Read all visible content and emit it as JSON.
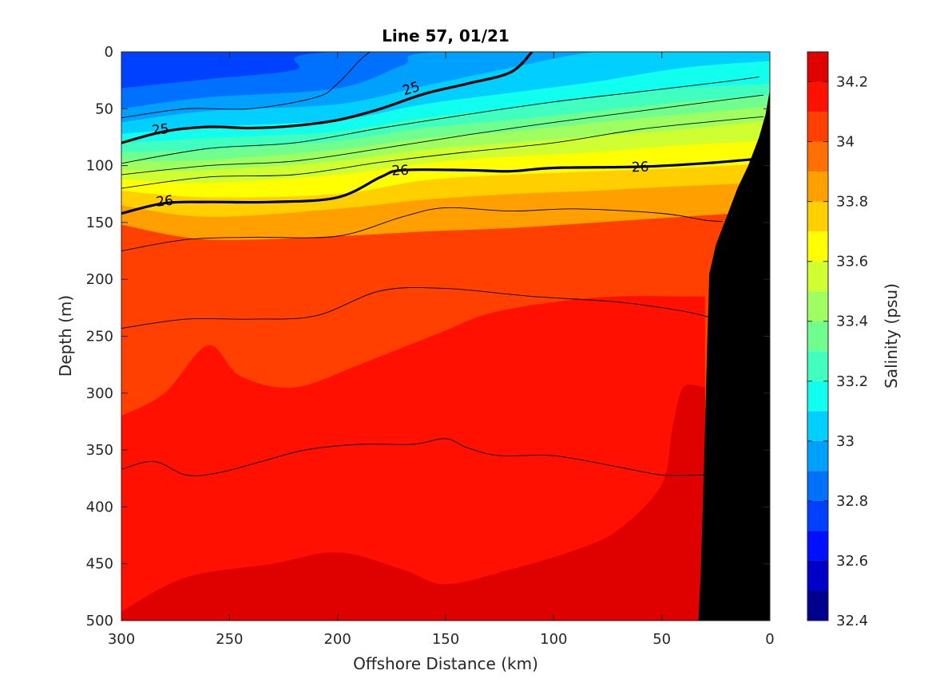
{
  "chart_data": {
    "type": "contourf",
    "title": "Line 57, 01/21",
    "xlabel": "Offshore Distance (km)",
    "ylabel": "Depth (m)",
    "xlim": [
      300,
      0
    ],
    "ylim": [
      0,
      500
    ],
    "x_reversed": true,
    "y_reversed": true,
    "x_ticks": [
      300,
      250,
      200,
      150,
      100,
      50,
      0
    ],
    "y_ticks": [
      0,
      50,
      100,
      150,
      200,
      250,
      300,
      350,
      400,
      450,
      500
    ],
    "colorbar": {
      "label": "Salinity (psu)",
      "range": [
        32.4,
        34.3
      ],
      "levels": [
        32.4,
        32.5,
        32.6,
        32.7,
        32.8,
        32.9,
        33.0,
        33.1,
        33.2,
        33.3,
        33.4,
        33.5,
        33.6,
        33.7,
        33.8,
        33.9,
        34.0,
        34.1,
        34.2,
        34.3
      ],
      "colors": [
        "#00008f",
        "#0000c8",
        "#0010ff",
        "#0040ff",
        "#0070ff",
        "#00a0ff",
        "#00cfff",
        "#10ffef",
        "#40ffbf",
        "#70ff8f",
        "#9fff60",
        "#cfff30",
        "#ffff00",
        "#ffcf00",
        "#ff9f00",
        "#ff7000",
        "#ff4000",
        "#ff1000",
        "#df0000",
        "#af0000"
      ],
      "ticks": [
        32.4,
        32.6,
        32.8,
        33.0,
        33.2,
        33.4,
        33.6,
        33.8,
        34.0,
        34.2
      ],
      "tick_labels": [
        "32.4",
        "32.6",
        "32.8",
        "33",
        "33.2",
        "33.4",
        "33.6",
        "33.8",
        "34",
        "34.2"
      ]
    },
    "salinity_layers": [
      {
        "level": 34.0,
        "note": "base",
        "top": [
          [
            300,
            0
          ],
          [
            0,
            0
          ]
        ]
      },
      {
        "level": 33.9,
        "top": [
          [
            300,
            152
          ],
          [
            260,
            165
          ],
          [
            200,
            162
          ],
          [
            160,
            158
          ],
          [
            120,
            155
          ],
          [
            80,
            150
          ],
          [
            40,
            145
          ],
          [
            0,
            140
          ]
        ]
      },
      {
        "level": 33.8,
        "top": [
          [
            300,
            135
          ],
          [
            260,
            145
          ],
          [
            200,
            138
          ],
          [
            160,
            130
          ],
          [
            120,
            125
          ],
          [
            80,
            122
          ],
          [
            40,
            118
          ],
          [
            0,
            115
          ]
        ]
      },
      {
        "level": 33.7,
        "top": [
          [
            300,
            122
          ],
          [
            260,
            128
          ],
          [
            200,
            125
          ],
          [
            160,
            113
          ],
          [
            120,
            108
          ],
          [
            80,
            105
          ],
          [
            40,
            102
          ],
          [
            0,
            98
          ]
        ]
      },
      {
        "level": 33.6,
        "top": [
          [
            300,
            112
          ],
          [
            260,
            115
          ],
          [
            200,
            108
          ],
          [
            160,
            98
          ],
          [
            120,
            92
          ],
          [
            80,
            88
          ],
          [
            40,
            82
          ],
          [
            0,
            78
          ]
        ]
      },
      {
        "level": 33.5,
        "top": [
          [
            300,
            104
          ],
          [
            260,
            104
          ],
          [
            200,
            96
          ],
          [
            160,
            86
          ],
          [
            120,
            80
          ],
          [
            80,
            74
          ],
          [
            40,
            68
          ],
          [
            0,
            60
          ]
        ]
      },
      {
        "level": 33.4,
        "top": [
          [
            300,
            96
          ],
          [
            260,
            95
          ],
          [
            200,
            86
          ],
          [
            160,
            76
          ],
          [
            120,
            70
          ],
          [
            80,
            62
          ],
          [
            40,
            55
          ],
          [
            0,
            48
          ]
        ]
      },
      {
        "level": 33.3,
        "top": [
          [
            300,
            88
          ],
          [
            260,
            86
          ],
          [
            200,
            78
          ],
          [
            160,
            67
          ],
          [
            120,
            60
          ],
          [
            80,
            52
          ],
          [
            40,
            44
          ],
          [
            0,
            38
          ]
        ]
      },
      {
        "level": 33.2,
        "top": [
          [
            300,
            80
          ],
          [
            260,
            76
          ],
          [
            200,
            70
          ],
          [
            160,
            58
          ],
          [
            120,
            50
          ],
          [
            80,
            40
          ],
          [
            40,
            32
          ],
          [
            0,
            28
          ]
        ]
      },
      {
        "level": 33.1,
        "top": [
          [
            300,
            72
          ],
          [
            260,
            66
          ],
          [
            200,
            60
          ],
          [
            160,
            46
          ],
          [
            120,
            36
          ],
          [
            80,
            26
          ],
          [
            40,
            14
          ],
          [
            0,
            8
          ]
        ]
      },
      {
        "level": 33.0,
        "top": [
          [
            300,
            62
          ],
          [
            260,
            52
          ],
          [
            200,
            46
          ],
          [
            160,
            30
          ],
          [
            120,
            14
          ],
          [
            80,
            0
          ],
          [
            40,
            0
          ],
          [
            0,
            0
          ]
        ]
      },
      {
        "level": 32.9,
        "top": [
          [
            300,
            50
          ],
          [
            260,
            40
          ],
          [
            200,
            32
          ],
          [
            170,
            12
          ],
          [
            150,
            0
          ],
          [
            0,
            0
          ]
        ]
      },
      {
        "level": 32.8,
        "top": [
          [
            300,
            32
          ],
          [
            260,
            24
          ],
          [
            220,
            16
          ],
          [
            200,
            0
          ],
          [
            0,
            0
          ]
        ]
      }
    ],
    "deep_layers": [
      {
        "level": 34.1,
        "top": [
          [
            300,
            320
          ],
          [
            280,
            300
          ],
          [
            260,
            258
          ],
          [
            245,
            285
          ],
          [
            220,
            295
          ],
          [
            190,
            275
          ],
          [
            170,
            260
          ],
          [
            150,
            245
          ],
          [
            130,
            230
          ],
          [
            100,
            220
          ],
          [
            70,
            215
          ],
          [
            40,
            215
          ],
          [
            30,
            215
          ],
          [
            30,
            500
          ],
          [
            300,
            500
          ]
        ]
      },
      {
        "level": 34.2,
        "top": [
          [
            300,
            492
          ],
          [
            270,
            462
          ],
          [
            230,
            450
          ],
          [
            200,
            440
          ],
          [
            170,
            455
          ],
          [
            150,
            468
          ],
          [
            120,
            455
          ],
          [
            90,
            438
          ],
          [
            70,
            420
          ],
          [
            50,
            380
          ],
          [
            45,
            330
          ],
          [
            40,
            295
          ],
          [
            30,
            295
          ],
          [
            30,
            500
          ],
          [
            300,
            500
          ]
        ]
      }
    ],
    "density_contours": [
      {
        "sigma": 25.0,
        "bold": true,
        "label": "25",
        "points": [
          [
            300,
            80
          ],
          [
            280,
            70
          ],
          [
            260,
            66
          ],
          [
            240,
            67
          ],
          [
            220,
            65
          ],
          [
            200,
            60
          ],
          [
            180,
            50
          ],
          [
            160,
            37
          ],
          [
            140,
            28
          ],
          [
            120,
            18
          ],
          [
            110,
            0
          ]
        ]
      },
      {
        "sigma": 26.0,
        "bold": true,
        "label": "26",
        "points": [
          [
            300,
            142
          ],
          [
            280,
            133
          ],
          [
            260,
            132
          ],
          [
            230,
            132
          ],
          [
            200,
            128
          ],
          [
            180,
            110
          ],
          [
            170,
            104
          ],
          [
            140,
            104
          ],
          [
            120,
            105
          ],
          [
            100,
            102
          ],
          [
            60,
            101
          ],
          [
            30,
            98
          ],
          [
            5,
            94
          ]
        ]
      },
      {
        "sigma": 24.6,
        "bold": false,
        "points": [
          [
            300,
            58
          ],
          [
            270,
            50
          ],
          [
            240,
            50
          ],
          [
            210,
            40
          ],
          [
            200,
            28
          ],
          [
            190,
            8
          ],
          [
            185,
            0
          ]
        ]
      },
      {
        "sigma": 25.2,
        "bold": false,
        "points": [
          [
            300,
            98
          ],
          [
            260,
            85
          ],
          [
            220,
            80
          ],
          [
            180,
            67
          ],
          [
            140,
            55
          ],
          [
            100,
            44
          ],
          [
            60,
            35
          ],
          [
            20,
            26
          ],
          [
            5,
            22
          ]
        ]
      },
      {
        "sigma": 25.4,
        "bold": false,
        "points": [
          [
            300,
            108
          ],
          [
            260,
            100
          ],
          [
            220,
            96
          ],
          [
            180,
            85
          ],
          [
            140,
            73
          ],
          [
            100,
            62
          ],
          [
            60,
            52
          ],
          [
            20,
            42
          ],
          [
            3,
            38
          ]
        ]
      },
      {
        "sigma": 25.6,
        "bold": false,
        "points": [
          [
            300,
            120
          ],
          [
            260,
            110
          ],
          [
            220,
            108
          ],
          [
            180,
            97
          ],
          [
            140,
            88
          ],
          [
            100,
            80
          ],
          [
            60,
            68
          ],
          [
            20,
            60
          ],
          [
            3,
            57
          ]
        ]
      },
      {
        "sigma": 26.2,
        "bold": false,
        "points": [
          [
            300,
            175
          ],
          [
            270,
            165
          ],
          [
            240,
            163
          ],
          [
            200,
            162
          ],
          [
            170,
            145
          ],
          [
            150,
            137
          ],
          [
            120,
            140
          ],
          [
            90,
            138
          ],
          [
            50,
            142
          ],
          [
            30,
            148
          ],
          [
            22,
            149
          ]
        ]
      },
      {
        "sigma": 26.4,
        "bold": false,
        "points": [
          [
            300,
            243
          ],
          [
            270,
            235
          ],
          [
            240,
            235
          ],
          [
            210,
            232
          ],
          [
            180,
            210
          ],
          [
            150,
            208
          ],
          [
            110,
            215
          ],
          [
            70,
            220
          ],
          [
            40,
            228
          ],
          [
            25,
            235
          ]
        ]
      },
      {
        "sigma": 26.6,
        "bold": false,
        "points": [
          [
            300,
            367
          ],
          [
            285,
            360
          ],
          [
            270,
            372
          ],
          [
            255,
            370
          ],
          [
            235,
            360
          ],
          [
            215,
            350
          ],
          [
            190,
            345
          ],
          [
            165,
            345
          ],
          [
            150,
            340
          ],
          [
            140,
            348
          ],
          [
            125,
            355
          ],
          [
            100,
            355
          ],
          [
            70,
            365
          ],
          [
            50,
            372
          ],
          [
            35,
            372
          ],
          [
            30,
            372
          ]
        ]
      }
    ],
    "bathymetry": [
      [
        0,
        33
      ],
      [
        2,
        55
      ],
      [
        5,
        75
      ],
      [
        10,
        100
      ],
      [
        15,
        120
      ],
      [
        20,
        145
      ],
      [
        25,
        170
      ],
      [
        28,
        195
      ],
      [
        29,
        260
      ],
      [
        30,
        330
      ],
      [
        31,
        400
      ],
      [
        32,
        460
      ],
      [
        33,
        500
      ]
    ]
  }
}
